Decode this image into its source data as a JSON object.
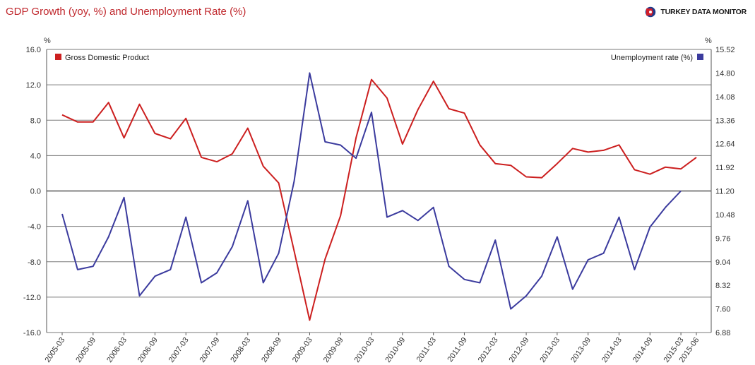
{
  "header": {
    "title": "GDP Growth (yoy, %) and Unemployment Rate (%)",
    "brand": "TURKEY DATA MONITOR"
  },
  "colors": {
    "gdp": "#cc1f1f",
    "unemployment": "#3b3b9e",
    "grid": "#7a7a7a",
    "zero_line": "#555555"
  },
  "chart_data": {
    "type": "line",
    "left_axis_unit": "%",
    "right_axis_unit": "%",
    "x_tick_labels": [
      "2005-03",
      "2005-09",
      "2006-03",
      "2006-09",
      "2007-03",
      "2007-09",
      "2008-03",
      "2008-09",
      "2009-03",
      "2009-09",
      "2010-03",
      "2010-09",
      "2011-03",
      "2011-09",
      "2012-03",
      "2012-09",
      "2013-03",
      "2013-09",
      "2014-03",
      "2014-09",
      "2015-03",
      "2015-06"
    ],
    "quarters": [
      "2005-03",
      "2005-06",
      "2005-09",
      "2005-12",
      "2006-03",
      "2006-06",
      "2006-09",
      "2006-12",
      "2007-03",
      "2007-06",
      "2007-09",
      "2007-12",
      "2008-03",
      "2008-06",
      "2008-09",
      "2008-12",
      "2009-03",
      "2009-06",
      "2009-09",
      "2009-12",
      "2010-03",
      "2010-06",
      "2010-09",
      "2010-12",
      "2011-03",
      "2011-06",
      "2011-09",
      "2011-12",
      "2012-03",
      "2012-06",
      "2012-09",
      "2012-12",
      "2013-03",
      "2013-06",
      "2013-09",
      "2013-12",
      "2014-03",
      "2014-06",
      "2014-09",
      "2014-12",
      "2015-03",
      "2015-06"
    ],
    "left_axis": {
      "min": -16.0,
      "max": 16.0,
      "ticks": [
        "16.0",
        "12.0",
        "8.0",
        "4.0",
        "0.0",
        "-4.0",
        "-8.0",
        "-12.0",
        "-16.0"
      ]
    },
    "right_axis": {
      "min": 6.88,
      "max": 15.52,
      "ticks": [
        "15.52",
        "14.80",
        "14.08",
        "13.36",
        "12.64",
        "11.92",
        "11.20",
        "10.48",
        "9.76",
        "9.04",
        "8.32",
        "7.60",
        "6.88"
      ]
    },
    "grid": true,
    "legend_placement": "top (left and right)",
    "series": [
      {
        "name": "Gross Domestic Product",
        "axis": "left",
        "values": [
          8.6,
          7.8,
          7.8,
          10.0,
          6.0,
          9.8,
          6.5,
          5.9,
          8.2,
          3.8,
          3.3,
          4.2,
          7.1,
          2.8,
          0.9,
          -6.8,
          -14.6,
          -7.7,
          -2.8,
          6.0,
          12.6,
          10.5,
          5.3,
          9.2,
          12.4,
          9.3,
          8.8,
          5.2,
          3.1,
          2.9,
          1.6,
          1.5,
          3.1,
          4.8,
          4.4,
          4.6,
          5.2,
          2.4,
          1.9,
          2.7,
          2.5,
          3.8
        ]
      },
      {
        "name": "Unemployment rate (%)",
        "axis": "right",
        "values": [
          10.5,
          8.8,
          8.9,
          9.8,
          11.0,
          8.0,
          8.6,
          8.8,
          10.4,
          8.4,
          8.7,
          9.5,
          10.9,
          8.4,
          9.3,
          11.5,
          14.8,
          12.7,
          12.6,
          12.2,
          13.6,
          10.4,
          10.6,
          10.3,
          10.7,
          8.9,
          8.5,
          8.4,
          9.7,
          7.6,
          8.0,
          8.6,
          9.8,
          8.2,
          9.1,
          9.3,
          10.4,
          8.8,
          10.1,
          10.7,
          11.2
        ]
      }
    ]
  }
}
